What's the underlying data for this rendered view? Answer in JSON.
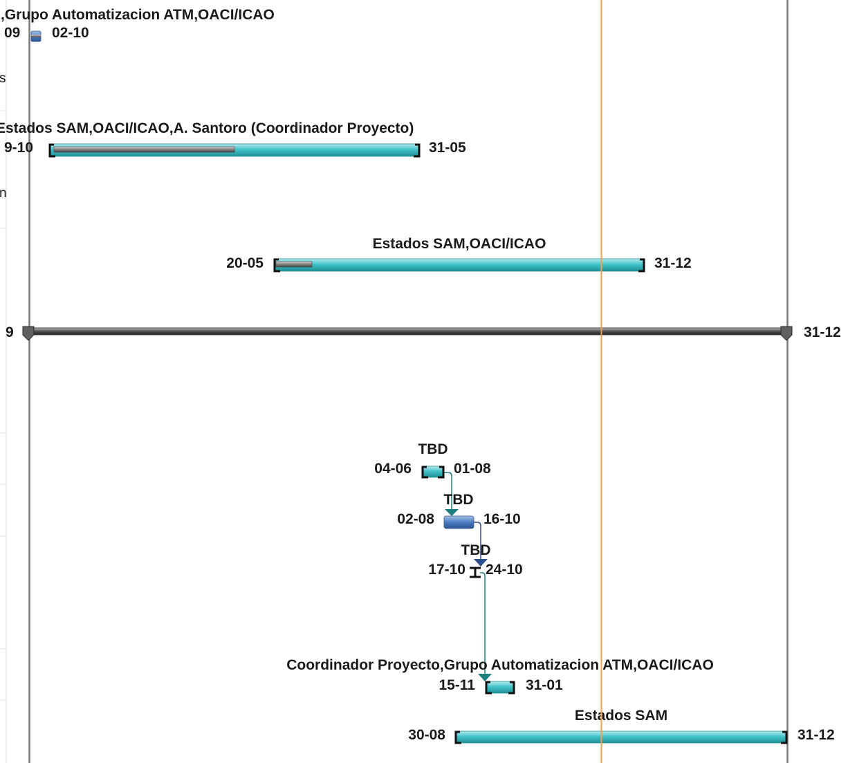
{
  "chart_data": {
    "type": "gantt",
    "tasks": [
      {
        "id": "t1",
        "resources": "),Grupo Automatizacion ATM,OACI/ICAO",
        "start_label": "09",
        "end_label": "02-10",
        "style": "blue-small",
        "progress": 1.0
      },
      {
        "id": "t2",
        "resources": "Estados SAM,OACI/ICAO,A. Santoro (Coordinador Proyecto)",
        "start_label": "9-10",
        "end_label": "31-05",
        "style": "teal",
        "progress": 0.5
      },
      {
        "id": "t3",
        "resources": "Estados SAM,OACI/ICAO",
        "start_label": "20-05",
        "end_label": "31-12",
        "style": "teal",
        "progress": 0.1
      },
      {
        "id": "t4",
        "resources": "",
        "start_label": "9",
        "end_label": "31-12",
        "style": "summary",
        "progress": 0
      },
      {
        "id": "t5",
        "resources": "TBD",
        "start_label": "04-06",
        "end_label": "01-08",
        "style": "teal-small",
        "progress": 0
      },
      {
        "id": "t6",
        "resources": "TBD",
        "start_label": "02-08",
        "end_label": "16-10",
        "style": "blue",
        "progress": 0
      },
      {
        "id": "t7",
        "resources": "TBD",
        "start_label": "17-10",
        "end_label": "24-10",
        "style": "milestone",
        "progress": 0
      },
      {
        "id": "t8",
        "resources": "Coordinador Proyecto,Grupo Automatizacion ATM,OACI/ICAO",
        "start_label": "15-11",
        "end_label": "31-01",
        "style": "teal-small",
        "progress": 0
      },
      {
        "id": "t9",
        "resources": "Estados SAM",
        "start_label": "30-08",
        "end_label": "31-12",
        "style": "teal",
        "progress": 0
      }
    ],
    "left_column_fragments": [
      "s",
      "n"
    ],
    "colors": {
      "teal_bar": "#3dbdc4",
      "blue_bar": "#4a7cc0",
      "summary_bar": "#3c3c3c",
      "progress_bar": "#7a7a7a",
      "today_line": "#f0a050",
      "link_teal": "#1d7e80",
      "link_blue": "#2b4f86",
      "gridline": "#7a7a7a"
    }
  }
}
